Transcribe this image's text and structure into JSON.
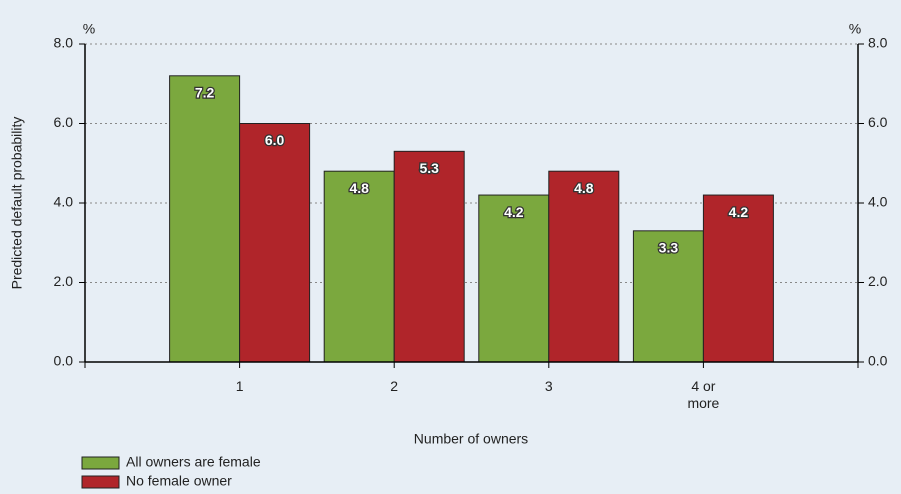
{
  "chart_data": {
    "type": "bar",
    "y_unit": "%",
    "y2_unit": "%",
    "ylabel": "Predicted default probability",
    "xlabel": "Number of owners",
    "categories": [
      "1",
      "2",
      "3",
      "4 or more"
    ],
    "series": [
      {
        "name": "All owners are female",
        "color": "#7ba83e",
        "values": [
          7.2,
          4.8,
          4.2,
          3.3
        ],
        "value_labels": [
          "7.2",
          "4.8",
          "4.2",
          "3.3"
        ]
      },
      {
        "name": "No female owner",
        "color": "#b0252a",
        "values": [
          6.0,
          5.3,
          4.8,
          4.2
        ],
        "value_labels": [
          "6.0",
          "5.3",
          "4.8",
          "4.2"
        ]
      }
    ],
    "ylim": [
      0,
      8
    ],
    "yticks": [
      {
        "value": 0,
        "label": "0.0"
      },
      {
        "value": 2,
        "label": "2.0"
      },
      {
        "value": 4,
        "label": "4.0"
      },
      {
        "value": 6,
        "label": "6.0"
      },
      {
        "value": 8,
        "label": "8.0"
      }
    ],
    "y2lim": [
      0,
      8
    ],
    "y2ticks": [
      {
        "value": 0,
        "label": "0.0"
      },
      {
        "value": 2,
        "label": "2.0"
      },
      {
        "value": 4,
        "label": "4.0"
      },
      {
        "value": 6,
        "label": "6.0"
      },
      {
        "value": 8,
        "label": "8.0"
      }
    ],
    "grid": true
  }
}
